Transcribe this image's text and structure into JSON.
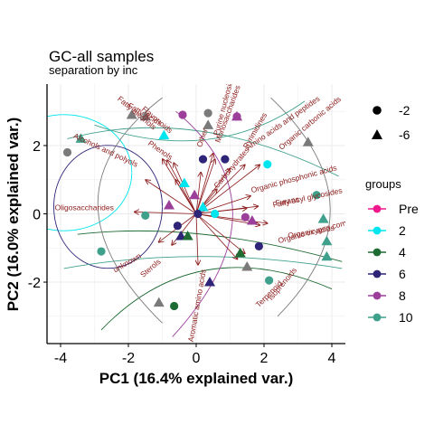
{
  "chart_data": {
    "type": "scatter",
    "title": "GC-all samples",
    "subtitle": "separation by inc",
    "xlabel": "PC1 (16.4% explained var.)",
    "ylabel": "PC2 (16.0% explained var.)",
    "xlim": [
      -4.4,
      4.4
    ],
    "ylim": [
      -3.8,
      3.8
    ],
    "x_ticks": [
      -4,
      -2,
      0,
      2,
      4
    ],
    "y_ticks": [
      -2,
      0,
      2
    ],
    "grid": true,
    "legend_shape_values": [
      "-2",
      "-6"
    ],
    "legend_groups_title": "groups",
    "groups": [
      {
        "name": "Pre",
        "color": "#f0188c"
      },
      {
        "name": "2",
        "color": "#00e5ee"
      },
      {
        "name": "4",
        "color": "#1e6b33"
      },
      {
        "name": "6",
        "color": "#2e2478"
      },
      {
        "name": "8",
        "color": "#9b3f9b"
      },
      {
        "name": "10",
        "color": "#3fa08c"
      }
    ],
    "points": [
      {
        "x": -3.8,
        "y": 1.8,
        "group": "10",
        "shape": "circle",
        "color": "#7a7a7a"
      },
      {
        "x": -3.4,
        "y": 2.2,
        "group": "10",
        "shape": "triangle",
        "color": "#3fa08c"
      },
      {
        "x": -2.8,
        "y": -1.1,
        "group": "10",
        "shape": "circle",
        "color": "#3fa08c"
      },
      {
        "x": -1.5,
        "y": -0.05,
        "group": "10",
        "shape": "circle",
        "color": "#3fa08c"
      },
      {
        "x": -1.5,
        "y": 2.85,
        "group": "8",
        "shape": "triangle",
        "color": "#7a7a7a"
      },
      {
        "x": -1.9,
        "y": 2.9,
        "group": "8",
        "shape": "triangle",
        "color": "#7a7a7a"
      },
      {
        "x": -1.1,
        "y": -2.6,
        "group": "8",
        "shape": "triangle",
        "color": "#7a7a7a"
      },
      {
        "x": -0.65,
        "y": -2.7,
        "group": "4",
        "shape": "circle",
        "color": "#1e6b33"
      },
      {
        "x": -0.95,
        "y": 2.3,
        "group": "2",
        "shape": "triangle",
        "color": "#00e5ee"
      },
      {
        "x": -0.35,
        "y": 0.9,
        "group": "2",
        "shape": "triangle",
        "color": "#00e5ee"
      },
      {
        "x": -0.4,
        "y": 2.9,
        "group": "8",
        "shape": "circle",
        "color": "#9b3f9b"
      },
      {
        "x": 0.35,
        "y": 2.95,
        "group": "8",
        "shape": "circle",
        "color": "#7a7a7a"
      },
      {
        "x": 0.35,
        "y": 2.6,
        "group": "8",
        "shape": "triangle",
        "color": "#7a7a7a"
      },
      {
        "x": 1.2,
        "y": 2.85,
        "group": "8",
        "shape": "triangle",
        "color": "#9b3f9b"
      },
      {
        "x": 1.2,
        "y": 2.85,
        "group": "8",
        "shape": "circle",
        "color": "#9b3f9b"
      },
      {
        "x": 2.1,
        "y": 1.45,
        "group": "2",
        "shape": "circle",
        "color": "#00e5ee"
      },
      {
        "x": 0.2,
        "y": 1.6,
        "group": "6",
        "shape": "circle",
        "color": "#2e2478"
      },
      {
        "x": 0.85,
        "y": 1.6,
        "group": "6",
        "shape": "circle",
        "color": "#2e2478"
      },
      {
        "x": -0.05,
        "y": 0.55,
        "group": "8",
        "shape": "triangle",
        "color": "#9b3f9b"
      },
      {
        "x": 0.2,
        "y": 0.2,
        "group": "2",
        "shape": "triangle",
        "color": "#00e5ee"
      },
      {
        "x": 0.55,
        "y": 0.0,
        "group": "2",
        "shape": "circle",
        "color": "#00e5ee"
      },
      {
        "x": 0.05,
        "y": 0.0,
        "group": "6",
        "shape": "circle",
        "color": "#2e2478"
      },
      {
        "x": -0.8,
        "y": 0.25,
        "group": "8",
        "shape": "triangle",
        "color": "#9b3f9b"
      },
      {
        "x": -0.55,
        "y": -0.35,
        "group": "6",
        "shape": "circle",
        "color": "#2e2478"
      },
      {
        "x": -0.45,
        "y": -0.65,
        "group": "6",
        "shape": "triangle",
        "color": "#2e2478"
      },
      {
        "x": -0.25,
        "y": -0.65,
        "group": "4",
        "shape": "triangle",
        "color": "#1e6b33"
      },
      {
        "x": 0.4,
        "y": -2.0,
        "group": "6",
        "shape": "triangle",
        "color": "#2e2478"
      },
      {
        "x": 1.65,
        "y": -0.2,
        "group": "8",
        "shape": "triangle",
        "color": "#9b3f9b"
      },
      {
        "x": 1.45,
        "y": -0.1,
        "group": "8",
        "shape": "circle",
        "color": "#9b3f9b"
      },
      {
        "x": 1.3,
        "y": -1.15,
        "group": "4",
        "shape": "triangle",
        "color": "#1e6b33"
      },
      {
        "x": 1.5,
        "y": -1.55,
        "group": "4",
        "shape": "triangle",
        "color": "#7a7a7a"
      },
      {
        "x": 1.85,
        "y": -0.95,
        "group": "6",
        "shape": "circle",
        "color": "#2e2478"
      },
      {
        "x": 2.15,
        "y": -1.95,
        "group": "10",
        "shape": "circle",
        "color": "#3fa08c"
      },
      {
        "x": 3.3,
        "y": 2.1,
        "group": "10",
        "shape": "triangle",
        "color": "#7a7a7a"
      },
      {
        "x": 3.55,
        "y": 0.55,
        "group": "10",
        "shape": "circle",
        "color": "#3fa08c"
      },
      {
        "x": 3.75,
        "y": -0.15,
        "group": "10",
        "shape": "triangle",
        "color": "#3fa08c"
      },
      {
        "x": 3.85,
        "y": -0.8,
        "group": "10",
        "shape": "triangle",
        "color": "#3fa08c"
      },
      {
        "x": 3.85,
        "y": -1.25,
        "group": "10",
        "shape": "triangle",
        "color": "#3fa08c"
      }
    ],
    "loadings": [
      {
        "label": "Fatty alcohols",
        "x": -1.8,
        "y": 2.9,
        "angle": 40
      },
      {
        "label": "Fatty Acids",
        "x": -1.55,
        "y": 2.85,
        "angle": 30
      },
      {
        "label": "Phenols",
        "x": -1.1,
        "y": 1.8,
        "angle": 35
      },
      {
        "label": "Alcohols and polyols",
        "x": -2.7,
        "y": 1.8,
        "angle": 25
      },
      {
        "label": "Oligosaccharides",
        "x": -3.3,
        "y": 0.1,
        "angle": 0
      },
      {
        "label": "unknown",
        "x": -2.0,
        "y": -1.5,
        "angle": -30
      },
      {
        "label": "Sterols",
        "x": -1.3,
        "y": -1.65,
        "angle": -40
      },
      {
        "label": "Amino acids and peptides",
        "x": 2.6,
        "y": 2.6,
        "angle": -35
      },
      {
        "label": "Monosaccharides",
        "x": 1.0,
        "y": 2.9,
        "angle": -70
      },
      {
        "label": "Organic phosphonic acids",
        "x": 2.9,
        "y": 0.95,
        "angle": -15
      },
      {
        "label": "Fatty acyl glycosides",
        "x": 3.3,
        "y": 0.4,
        "angle": -12
      },
      {
        "label": "Organic carbonic acids",
        "x": 3.4,
        "y": 2.6,
        "angle": -40
      },
      {
        "label": "Purine nucleosides",
        "x": 0.9,
        "y": 3.2,
        "angle": -75
      },
      {
        "label": "Pyrimidines",
        "x": 1.8,
        "y": 2.4,
        "angle": -60
      },
      {
        "label": "Carbohydrates",
        "x": 1.1,
        "y": 1.3,
        "angle": -50
      },
      {
        "label": "Organic acids",
        "x": 3.4,
        "y": -0.6,
        "angle": -10
      },
      {
        "label": "Isoprenoids",
        "x": 2.6,
        "y": -2.1,
        "angle": -50
      },
      {
        "label": "Terpenoid",
        "x": 2.2,
        "y": -2.4,
        "angle": -45
      },
      {
        "label": "Aromatic amino acids",
        "x": 0.1,
        "y": -2.7,
        "angle": -80
      },
      {
        "label": "Furans",
        "x": 2.7,
        "y": 0.3,
        "angle": -10
      },
      {
        "label": "Other",
        "x": 0.25,
        "y": 2.2,
        "angle": -70
      },
      {
        "label": "Flavonoids",
        "x": -1.2,
        "y": 2.7,
        "angle": 40
      },
      {
        "label": "Organic oxygen compounds",
        "x": 3.8,
        "y": -0.5,
        "angle": -15
      }
    ]
  }
}
